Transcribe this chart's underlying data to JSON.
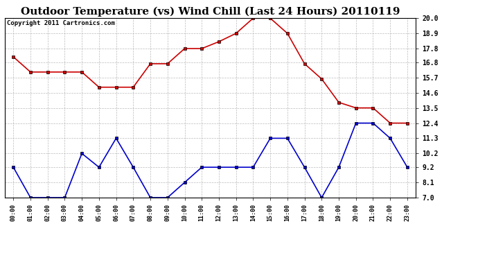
{
  "title": "Outdoor Temperature (vs) Wind Chill (Last 24 Hours) 20110119",
  "copyright": "Copyright 2011 Cartronics.com",
  "x_labels": [
    "00:00",
    "01:00",
    "02:00",
    "03:00",
    "04:00",
    "05:00",
    "06:00",
    "07:00",
    "08:00",
    "09:00",
    "10:00",
    "11:00",
    "12:00",
    "13:00",
    "14:00",
    "15:00",
    "16:00",
    "17:00",
    "18:00",
    "19:00",
    "20:00",
    "21:00",
    "22:00",
    "23:00"
  ],
  "red_data": [
    17.2,
    16.1,
    16.1,
    16.1,
    16.1,
    15.0,
    15.0,
    15.0,
    16.7,
    16.7,
    17.8,
    17.8,
    18.3,
    18.9,
    20.0,
    20.0,
    18.9,
    16.7,
    15.6,
    13.9,
    13.5,
    13.5,
    12.4,
    12.4
  ],
  "blue_data": [
    9.2,
    7.0,
    7.0,
    7.0,
    10.2,
    9.2,
    11.3,
    9.2,
    7.0,
    7.0,
    8.1,
    9.2,
    9.2,
    9.2,
    9.2,
    11.3,
    11.3,
    9.2,
    7.0,
    9.2,
    12.4,
    12.4,
    11.3,
    9.2
  ],
  "red_color": "#cc0000",
  "blue_color": "#0000cc",
  "background_color": "#ffffff",
  "plot_background": "#ffffff",
  "grid_color": "#aaaaaa",
  "ylim": [
    7.0,
    20.0
  ],
  "yticks": [
    7.0,
    8.1,
    9.2,
    10.2,
    11.3,
    12.4,
    13.5,
    14.6,
    15.7,
    16.8,
    17.8,
    18.9,
    20.0
  ],
  "title_fontsize": 11,
  "copyright_fontsize": 6.5,
  "marker": "s",
  "marker_size": 3,
  "linewidth": 1.2
}
